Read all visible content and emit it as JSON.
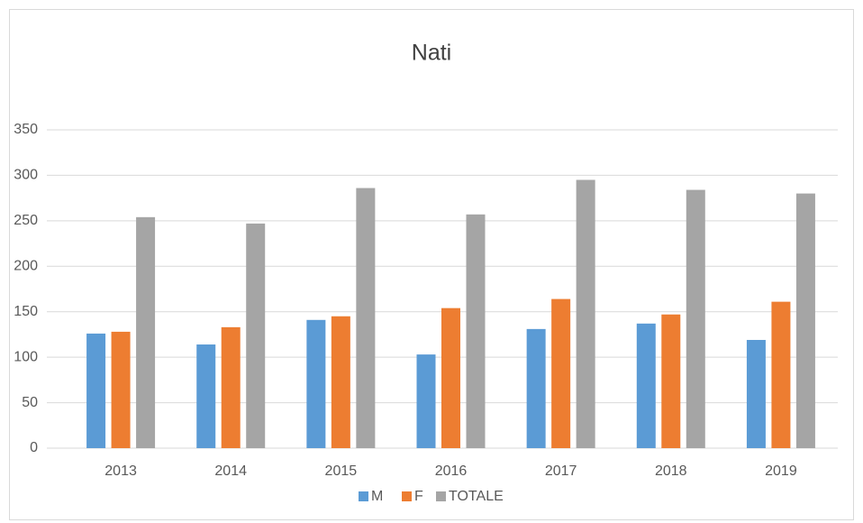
{
  "chart_data": {
    "type": "bar",
    "title": "Nati",
    "categories": [
      "2013",
      "2014",
      "2015",
      "2016",
      "2017",
      "2018",
      "2019"
    ],
    "series": [
      {
        "name": "M",
        "color": "#5b9bd5",
        "values": [
          126,
          114,
          141,
          103,
          131,
          137,
          119
        ]
      },
      {
        "name": "F",
        "color": "#ed7d31",
        "values": [
          128,
          133,
          145,
          154,
          164,
          147,
          161
        ]
      },
      {
        "name": "TOTALE",
        "color": "#a5a5a5",
        "values": [
          254,
          247,
          286,
          257,
          295,
          284,
          280
        ]
      }
    ],
    "ylim": [
      0,
      350
    ],
    "yticks": [
      0,
      50,
      100,
      150,
      200,
      250,
      300,
      350
    ],
    "grid": true,
    "legend": "bottom"
  }
}
